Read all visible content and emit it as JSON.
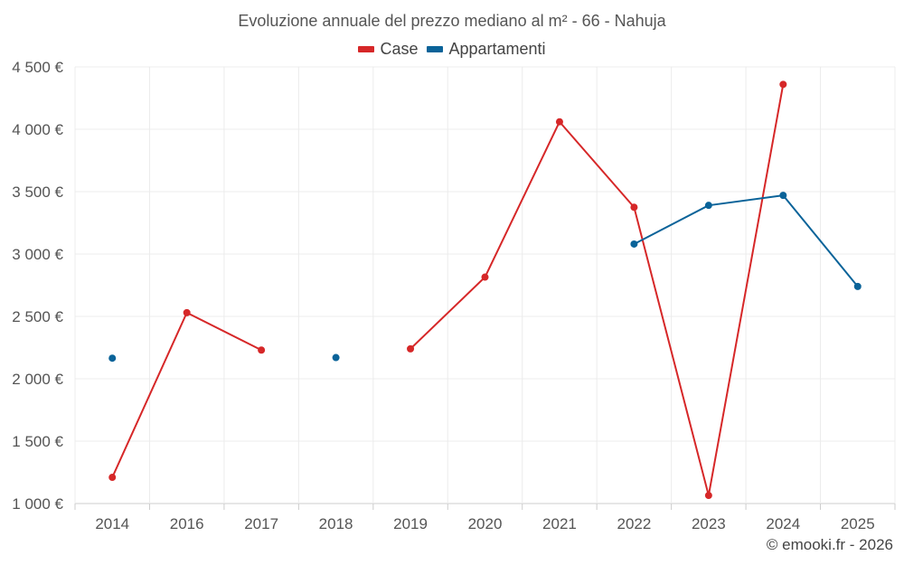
{
  "chart_data": {
    "type": "line",
    "title": "Evoluzione annuale del prezzo mediano al m² - 66 - Nahuja",
    "categories": [
      "2014",
      "2016",
      "2017",
      "2018",
      "2019",
      "2020",
      "2021",
      "2022",
      "2023",
      "2024",
      "2025"
    ],
    "y_tick_labels": [
      "1 000 €",
      "1 500 €",
      "2 000 €",
      "2 500 €",
      "3 000 €",
      "3 500 €",
      "4 000 €",
      "4 500 €"
    ],
    "y_ticks": [
      1000,
      1500,
      2000,
      2500,
      3000,
      3500,
      4000,
      4500
    ],
    "ylim": [
      1000,
      4500
    ],
    "grid": true,
    "legend_position": "top-center",
    "series": [
      {
        "name": "Case",
        "color": "#d62728",
        "values": [
          1210,
          2530,
          2230,
          null,
          2240,
          2815,
          4060,
          3375,
          1065,
          4360,
          null
        ]
      },
      {
        "name": "Appartamenti",
        "color": "#0a6399",
        "values": [
          2165,
          null,
          null,
          2170,
          null,
          null,
          null,
          3080,
          3390,
          3470,
          2740
        ]
      }
    ]
  },
  "credit": "© emooki.fr - 2026"
}
